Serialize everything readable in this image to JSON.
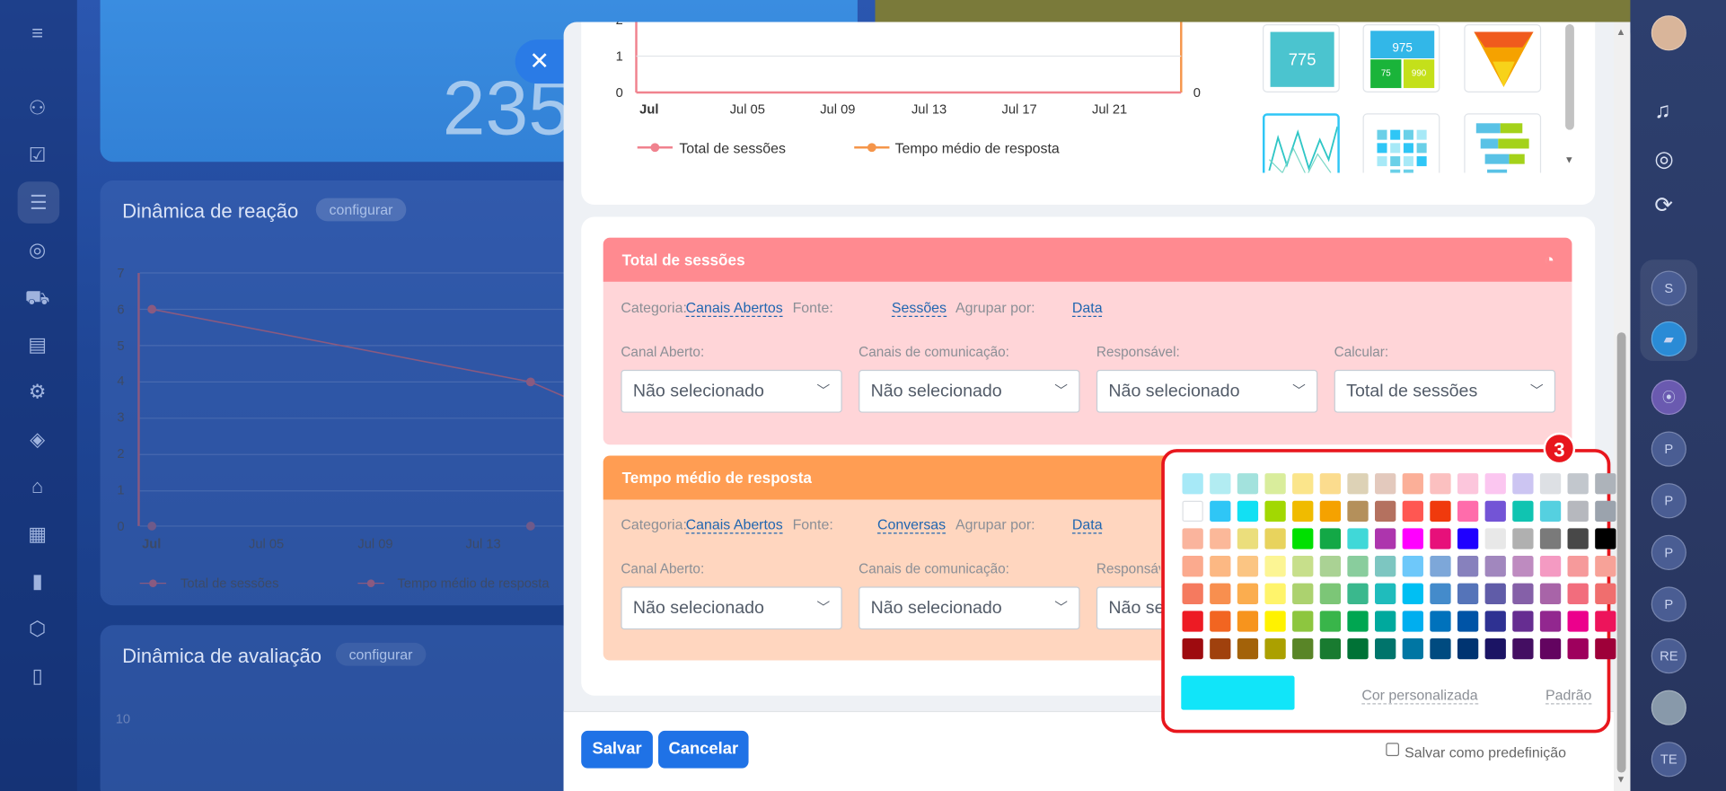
{
  "dashboard": {
    "big_number": "235",
    "reaction_card": {
      "title": "Dinâmica de reação",
      "config_label": "configurar"
    },
    "rating_card": {
      "title": "Dinâmica de avaliação",
      "config_label": "configurar",
      "y_tick": "10"
    },
    "bg_chart": {
      "y_ticks": [
        "0",
        "1",
        "2",
        "3",
        "4",
        "5",
        "6",
        "7"
      ],
      "x_ticks": [
        "Jul",
        "Jul 05",
        "Jul 09",
        "Jul 13"
      ],
      "legend": [
        "Total de sessões",
        "Tempo médio de resposta"
      ]
    }
  },
  "right_sidebar": {
    "avatars": [
      "S",
      "P",
      "P",
      "P",
      "P",
      "RE",
      "TE"
    ]
  },
  "widget_chart": {
    "left_ticks": [
      "2",
      "1",
      "0"
    ],
    "right_tick": "0",
    "x_ticks": [
      "Jul",
      "Jul 05",
      "Jul 09",
      "Jul 13",
      "Jul 17",
      "Jul 21"
    ],
    "legend": [
      {
        "label": "Total de sessões",
        "color": "#f0828e"
      },
      {
        "label": "Tempo médio de resposta",
        "color": "#f5954a"
      }
    ]
  },
  "thumbnails": {
    "t1_value": "775",
    "t2_value": "975",
    "t2_a": "75",
    "t2_b": "990"
  },
  "sections": [
    {
      "title": "Total de sessões",
      "color": "#ff8a90",
      "category_label": "Categoria:",
      "category_value": "Canais Abertos",
      "source_label": "Fonte:",
      "source_value": "Sessões",
      "group_label": "Agrupar por:",
      "group_value": "Data",
      "fields": [
        {
          "label": "Canal Aberto:",
          "value": "Não selecionado"
        },
        {
          "label": "Canais de comunicação:",
          "value": "Não selecionado"
        },
        {
          "label": "Responsável:",
          "value": "Não selecionado"
        },
        {
          "label": "Calcular:",
          "value": "Total de sessões"
        }
      ]
    },
    {
      "title": "Tempo médio de resposta",
      "color": "#ff9d53",
      "category_label": "Categoria:",
      "category_value": "Canais Abertos",
      "source_label": "Fonte:",
      "source_value": "Conversas",
      "group_label": "Agrupar por:",
      "group_value": "Data",
      "fields": [
        {
          "label": "Canal Aberto:",
          "value": "Não selecionado"
        },
        {
          "label": "Canais de comunicação:",
          "value": "Não selecionado"
        },
        {
          "label": "Responsável:",
          "value": "Não se"
        }
      ]
    }
  ],
  "color_picker": {
    "badge": "3",
    "selected_color": "#11e5f9",
    "custom_label": "Cor personalizada",
    "default_label": "Padrão",
    "rows": [
      [
        "#a7e9f7",
        "#b2ecf2",
        "#a3e2dd",
        "#d9ed9c",
        "#fbe58b",
        "#fbdc8e",
        "#ddd2b6",
        "#e3c9bd",
        "#fbaf98",
        "#fbc0c0",
        "#fcc6dc",
        "#fbc6f0",
        "#ccc5f2",
        "#dde0e4",
        "#c2c7cd",
        "#adb3ba"
      ],
      [
        "#ffffff",
        "#2fc6f6",
        "#12e0f3",
        "#a2d802",
        "#f0bb00",
        "#f5a200",
        "#b4905b",
        "#b4715f",
        "#ff5752",
        "#f03a0d",
        "#ff6cab",
        "#7354d6",
        "#10c4b1",
        "#55d0e0",
        "#b6b8be",
        "#9ba3ad"
      ],
      [
        "#fab49d",
        "#fbb899",
        "#ebde7c",
        "#e8d35d",
        "#00e000",
        "#13a846",
        "#40d8d8",
        "#ad35ad",
        "#ff00ff",
        "#e7107a",
        "#1f00ff",
        "#e8e8e8",
        "#b0b0b0",
        "#7a7a7a",
        "#484848",
        "#000000"
      ],
      [
        "#fbaa8e",
        "#fcb883",
        "#fbc583",
        "#fcf594",
        "#c7df8b",
        "#aad294",
        "#89cd9d",
        "#7dc6c1",
        "#6ec8fa",
        "#7da7d9",
        "#8781bd",
        "#a187be",
        "#be8bc0",
        "#f49ac2",
        "#f69a9b",
        "#f7a298"
      ],
      [
        "#f57a5f",
        "#f88f4f",
        "#fbad4f",
        "#fff46b",
        "#acd26f",
        "#7cc677",
        "#3ab88d",
        "#1fbcbc",
        "#00bff3",
        "#448bcb",
        "#5574b9",
        "#605ca8",
        "#8560a8",
        "#a864a8",
        "#f26d7d",
        "#f06e6e"
      ],
      [
        "#ed1b24",
        "#f26521",
        "#f7941d",
        "#fff200",
        "#8dc63f",
        "#39b54a",
        "#00a651",
        "#00a99d",
        "#00aeef",
        "#0072bc",
        "#0054a6",
        "#2e3192",
        "#662d91",
        "#92278f",
        "#ec008c",
        "#ed145b"
      ],
      [
        "#9e0b0f",
        "#a0410d",
        "#a36209",
        "#aba000",
        "#598527",
        "#197b30",
        "#007236",
        "#00746b",
        "#0076a3",
        "#004b80",
        "#003471",
        "#1b1464",
        "#440e62",
        "#630460",
        "#9e005d",
        "#9e0039"
      ]
    ]
  },
  "footer": {
    "save_label": "Salvar",
    "cancel_label": "Cancelar",
    "preset_label": "Salvar como predefinição"
  }
}
